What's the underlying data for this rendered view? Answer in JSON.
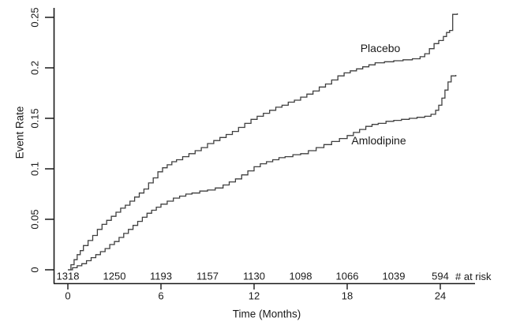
{
  "figure": {
    "y_axis_title": "Event Rate",
    "x_axis_title": "Time (Months)",
    "colors": {
      "background": "#ffffff",
      "axis": "#1a1a1a",
      "text": "#1a1a1a",
      "curve": "#3f3f3f"
    }
  },
  "chart_data": {
    "type": "line",
    "subtype": "kaplan-meier-step",
    "title": "",
    "xlabel": "Time (Months)",
    "ylabel": "Event Rate",
    "xlim": [
      0,
      25.5
    ],
    "ylim": [
      0,
      0.26
    ],
    "x_ticks": [
      0,
      6,
      12,
      18,
      24
    ],
    "x_tick_labels": [
      "0",
      "6",
      "12",
      "18",
      "24"
    ],
    "y_ticks": [
      0,
      0.05,
      0.1,
      0.15,
      0.2,
      0.25
    ],
    "y_tick_labels": [
      "0",
      "0.05",
      "0.1",
      "0.15",
      "0.2",
      "0.25"
    ],
    "grid": false,
    "legend_position": "inline-labels",
    "series": [
      {
        "name": "Placebo",
        "final_rate": 0.254,
        "points": [
          [
            0,
            0
          ],
          [
            0.2,
            0.005
          ],
          [
            0.4,
            0.01
          ],
          [
            0.6,
            0.015
          ],
          [
            0.8,
            0.019
          ],
          [
            1.0,
            0.024
          ],
          [
            1.3,
            0.029
          ],
          [
            1.6,
            0.034
          ],
          [
            1.9,
            0.04
          ],
          [
            2.2,
            0.045
          ],
          [
            2.5,
            0.049
          ],
          [
            2.8,
            0.053
          ],
          [
            3.1,
            0.057
          ],
          [
            3.4,
            0.061
          ],
          [
            3.7,
            0.064
          ],
          [
            4.0,
            0.068
          ],
          [
            4.3,
            0.072
          ],
          [
            4.6,
            0.076
          ],
          [
            4.9,
            0.08
          ],
          [
            5.2,
            0.086
          ],
          [
            5.5,
            0.091
          ],
          [
            5.8,
            0.097
          ],
          [
            6.1,
            0.101
          ],
          [
            6.4,
            0.104
          ],
          [
            6.7,
            0.107
          ],
          [
            7.0,
            0.109
          ],
          [
            7.4,
            0.112
          ],
          [
            7.8,
            0.115
          ],
          [
            8.2,
            0.118
          ],
          [
            8.6,
            0.121
          ],
          [
            9.0,
            0.125
          ],
          [
            9.4,
            0.128
          ],
          [
            9.8,
            0.131
          ],
          [
            10.2,
            0.134
          ],
          [
            10.6,
            0.137
          ],
          [
            11.0,
            0.141
          ],
          [
            11.4,
            0.145
          ],
          [
            11.8,
            0.149
          ],
          [
            12.2,
            0.152
          ],
          [
            12.6,
            0.155
          ],
          [
            13.0,
            0.158
          ],
          [
            13.4,
            0.161
          ],
          [
            13.8,
            0.163
          ],
          [
            14.2,
            0.166
          ],
          [
            14.6,
            0.168
          ],
          [
            15.0,
            0.171
          ],
          [
            15.4,
            0.174
          ],
          [
            15.8,
            0.177
          ],
          [
            16.2,
            0.181
          ],
          [
            16.6,
            0.184
          ],
          [
            17.0,
            0.188
          ],
          [
            17.4,
            0.192
          ],
          [
            17.8,
            0.195
          ],
          [
            18.2,
            0.197
          ],
          [
            18.6,
            0.199
          ],
          [
            19.0,
            0.201
          ],
          [
            19.4,
            0.203
          ],
          [
            19.8,
            0.205
          ],
          [
            20.4,
            0.206
          ],
          [
            21.0,
            0.207
          ],
          [
            21.6,
            0.208
          ],
          [
            22.2,
            0.209
          ],
          [
            22.7,
            0.211
          ],
          [
            23.0,
            0.214
          ],
          [
            23.3,
            0.219
          ],
          [
            23.6,
            0.224
          ],
          [
            23.9,
            0.227
          ],
          [
            24.2,
            0.231
          ],
          [
            24.4,
            0.235
          ],
          [
            24.6,
            0.237
          ],
          [
            24.8,
            0.253
          ],
          [
            25.1,
            0.254
          ]
        ]
      },
      {
        "name": "Amlodipine",
        "final_rate": 0.193,
        "points": [
          [
            0,
            0
          ],
          [
            0.3,
            0.002
          ],
          [
            0.6,
            0.004
          ],
          [
            0.9,
            0.006
          ],
          [
            1.2,
            0.009
          ],
          [
            1.5,
            0.012
          ],
          [
            1.8,
            0.015
          ],
          [
            2.1,
            0.018
          ],
          [
            2.4,
            0.021
          ],
          [
            2.7,
            0.025
          ],
          [
            3.0,
            0.028
          ],
          [
            3.3,
            0.032
          ],
          [
            3.6,
            0.036
          ],
          [
            3.9,
            0.04
          ],
          [
            4.2,
            0.044
          ],
          [
            4.5,
            0.048
          ],
          [
            4.8,
            0.052
          ],
          [
            5.1,
            0.056
          ],
          [
            5.4,
            0.059
          ],
          [
            5.7,
            0.062
          ],
          [
            6.0,
            0.065
          ],
          [
            6.4,
            0.068
          ],
          [
            6.8,
            0.071
          ],
          [
            7.2,
            0.073
          ],
          [
            7.6,
            0.075
          ],
          [
            8.0,
            0.076
          ],
          [
            8.5,
            0.078
          ],
          [
            9.0,
            0.079
          ],
          [
            9.5,
            0.081
          ],
          [
            10.0,
            0.084
          ],
          [
            10.4,
            0.087
          ],
          [
            10.8,
            0.09
          ],
          [
            11.2,
            0.094
          ],
          [
            11.6,
            0.098
          ],
          [
            12.0,
            0.102
          ],
          [
            12.4,
            0.105
          ],
          [
            12.8,
            0.107
          ],
          [
            13.2,
            0.109
          ],
          [
            13.6,
            0.111
          ],
          [
            14.0,
            0.112
          ],
          [
            14.5,
            0.114
          ],
          [
            15.0,
            0.115
          ],
          [
            15.5,
            0.118
          ],
          [
            16.0,
            0.121
          ],
          [
            16.5,
            0.124
          ],
          [
            17.0,
            0.127
          ],
          [
            17.5,
            0.13
          ],
          [
            18.0,
            0.133
          ],
          [
            18.4,
            0.136
          ],
          [
            18.8,
            0.139
          ],
          [
            19.2,
            0.142
          ],
          [
            19.6,
            0.144
          ],
          [
            20.0,
            0.145
          ],
          [
            20.5,
            0.147
          ],
          [
            21.0,
            0.148
          ],
          [
            21.5,
            0.149
          ],
          [
            22.0,
            0.15
          ],
          [
            22.5,
            0.151
          ],
          [
            23.0,
            0.152
          ],
          [
            23.4,
            0.154
          ],
          [
            23.7,
            0.158
          ],
          [
            23.9,
            0.163
          ],
          [
            24.1,
            0.17
          ],
          [
            24.3,
            0.178
          ],
          [
            24.5,
            0.186
          ],
          [
            24.7,
            0.192
          ],
          [
            25.0,
            0.193
          ]
        ]
      }
    ],
    "at_risk": {
      "label": "# at risk",
      "times": [
        0,
        3,
        6,
        9,
        12,
        15,
        18,
        21,
        24
      ],
      "counts": [
        1318,
        1250,
        1193,
        1157,
        1130,
        1098,
        1066,
        1039,
        594
      ]
    }
  }
}
